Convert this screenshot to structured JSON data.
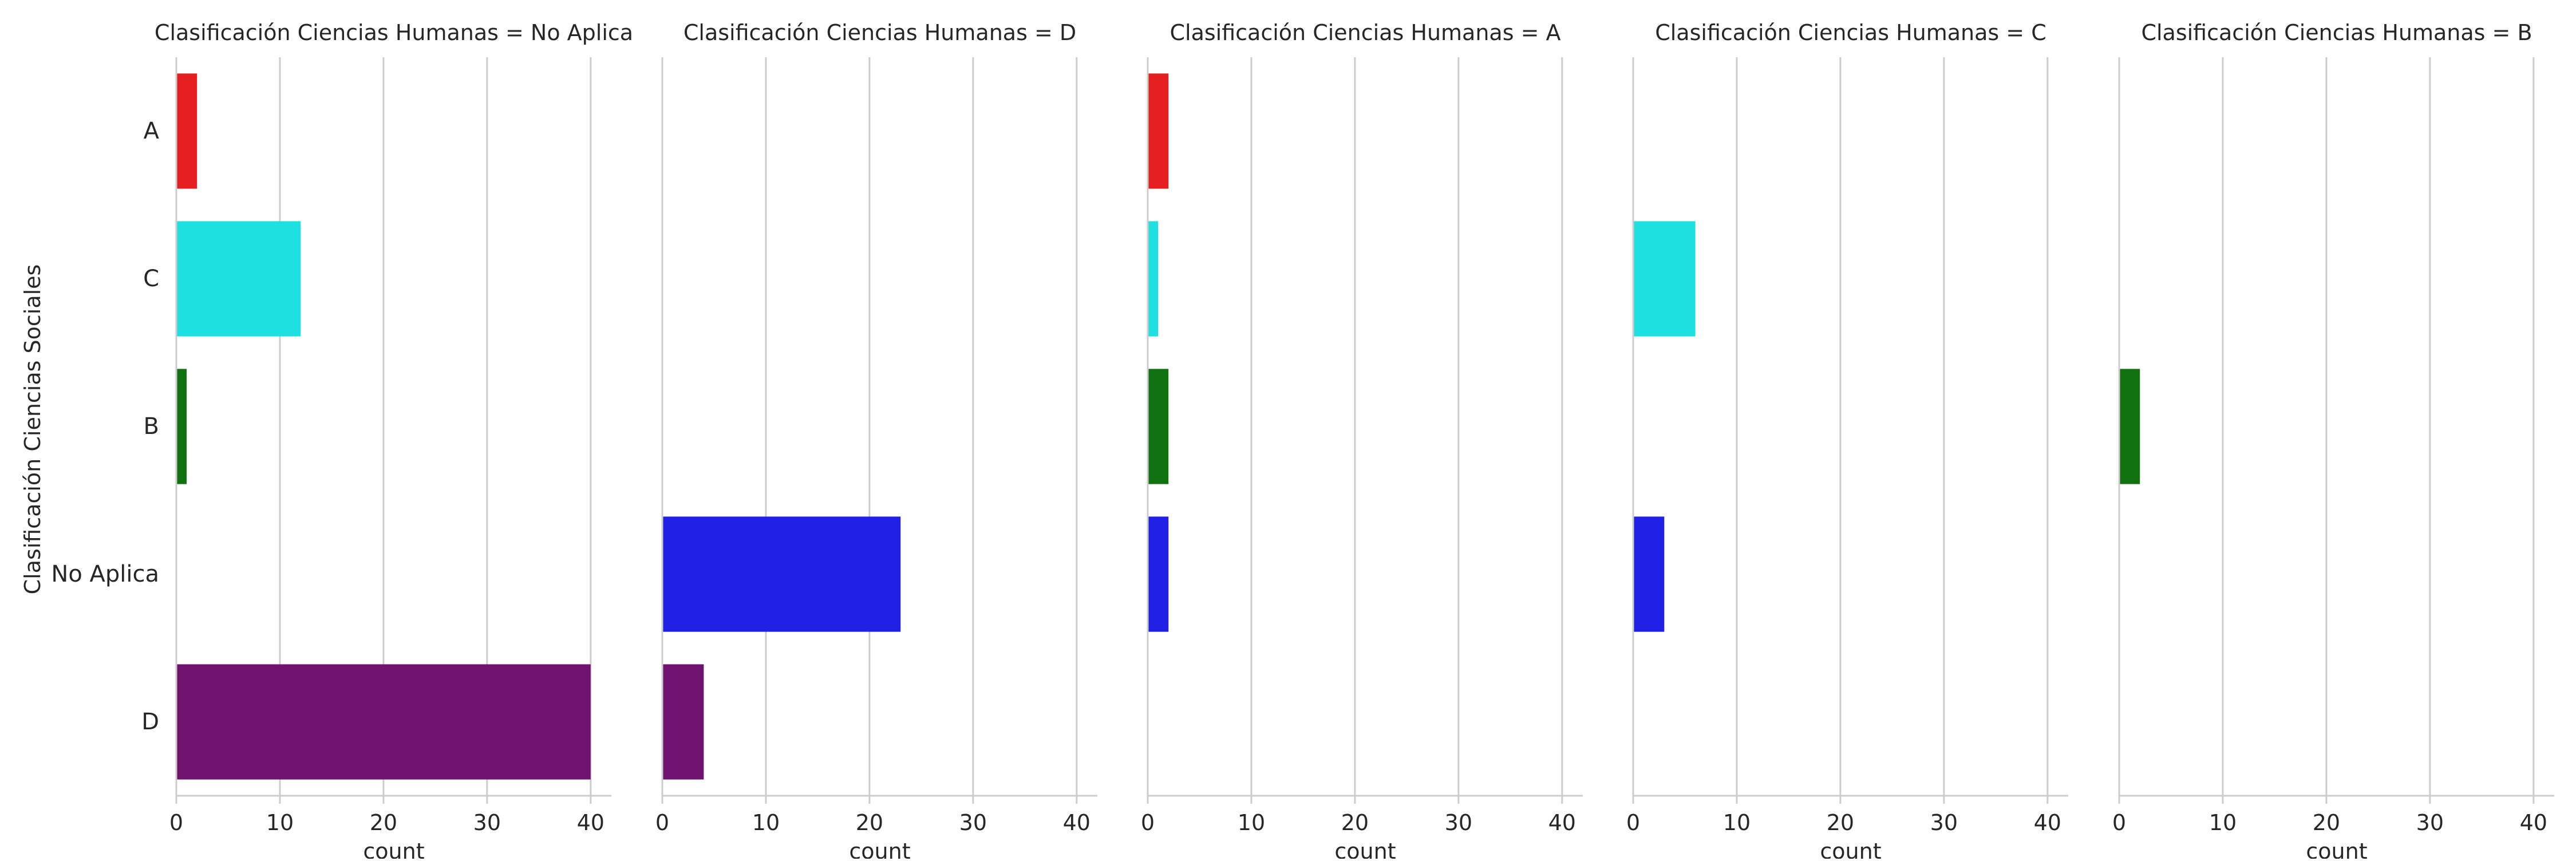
{
  "chart_data": {
    "type": "bar",
    "orientation": "horizontal",
    "ylabel": "Clasificación Ciencias Sociales",
    "xlabel": "count",
    "xlim": [
      0,
      42
    ],
    "xticks": [
      "0",
      "10",
      "20",
      "30",
      "40"
    ],
    "categories": [
      "A",
      "C",
      "B",
      "No Aplica",
      "D"
    ],
    "category_colors": {
      "A": "#e51f1f",
      "C": "#1fe0e0",
      "B": "#127212",
      "No Aplica": "#1f1fe5",
      "D": "#701270"
    },
    "grid": "vertical",
    "facets": [
      {
        "title": "Clasificación Ciencias Humanas = No Aplica",
        "values": [
          2,
          12,
          1,
          0,
          40
        ]
      },
      {
        "title": "Clasificación Ciencias Humanas = D",
        "values": [
          0,
          0,
          0,
          23,
          4
        ]
      },
      {
        "title": "Clasificación Ciencias Humanas = A",
        "values": [
          2,
          1,
          2,
          2,
          0
        ]
      },
      {
        "title": "Clasificación Ciencias Humanas = C",
        "values": [
          0,
          6,
          0,
          3,
          0
        ]
      },
      {
        "title": "Clasificación Ciencias Humanas = B",
        "values": [
          0,
          0,
          2,
          0,
          0
        ]
      }
    ]
  }
}
